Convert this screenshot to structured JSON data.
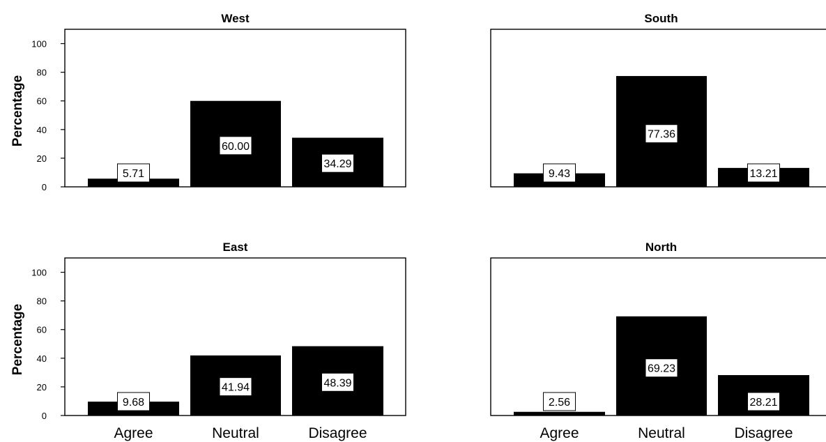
{
  "chart_data": [
    {
      "type": "bar",
      "title": "West",
      "ylabel": "Percentage",
      "ylim": [
        0,
        110
      ],
      "yticks": [
        "0",
        "20",
        "40",
        "60",
        "80",
        "100"
      ],
      "categories": [
        "Agree",
        "Neutral",
        "Disagree"
      ],
      "values": [
        5.71,
        60.0,
        34.29
      ],
      "labels": [
        "5.71",
        "60.00",
        "34.29"
      ],
      "show_xticks": false
    },
    {
      "type": "bar",
      "title": "South",
      "ylabel": "",
      "ylim": [
        0,
        110
      ],
      "yticks": [],
      "categories": [
        "Agree",
        "Neutral",
        "Disagree"
      ],
      "values": [
        9.43,
        77.36,
        13.21
      ],
      "labels": [
        "9.43",
        "77.36",
        "13.21"
      ],
      "show_xticks": false
    },
    {
      "type": "bar",
      "title": "East",
      "ylabel": "Percentage",
      "ylim": [
        0,
        110
      ],
      "yticks": [
        "0",
        "20",
        "40",
        "60",
        "80",
        "100"
      ],
      "categories": [
        "Agree",
        "Neutral",
        "Disagree"
      ],
      "values": [
        9.68,
        41.94,
        48.39
      ],
      "labels": [
        "9.68",
        "41.94",
        "48.39"
      ],
      "show_xticks": true
    },
    {
      "type": "bar",
      "title": "North",
      "ylabel": "",
      "ylim": [
        0,
        110
      ],
      "yticks": [],
      "categories": [
        "Agree",
        "Neutral",
        "Disagree"
      ],
      "values": [
        2.56,
        69.23,
        28.21
      ],
      "labels": [
        "2.56",
        "69.23",
        "28.21"
      ],
      "show_xticks": true
    }
  ],
  "colors": {
    "bar": "#000000",
    "label_box": "#ffffff",
    "axis": "#000000"
  }
}
